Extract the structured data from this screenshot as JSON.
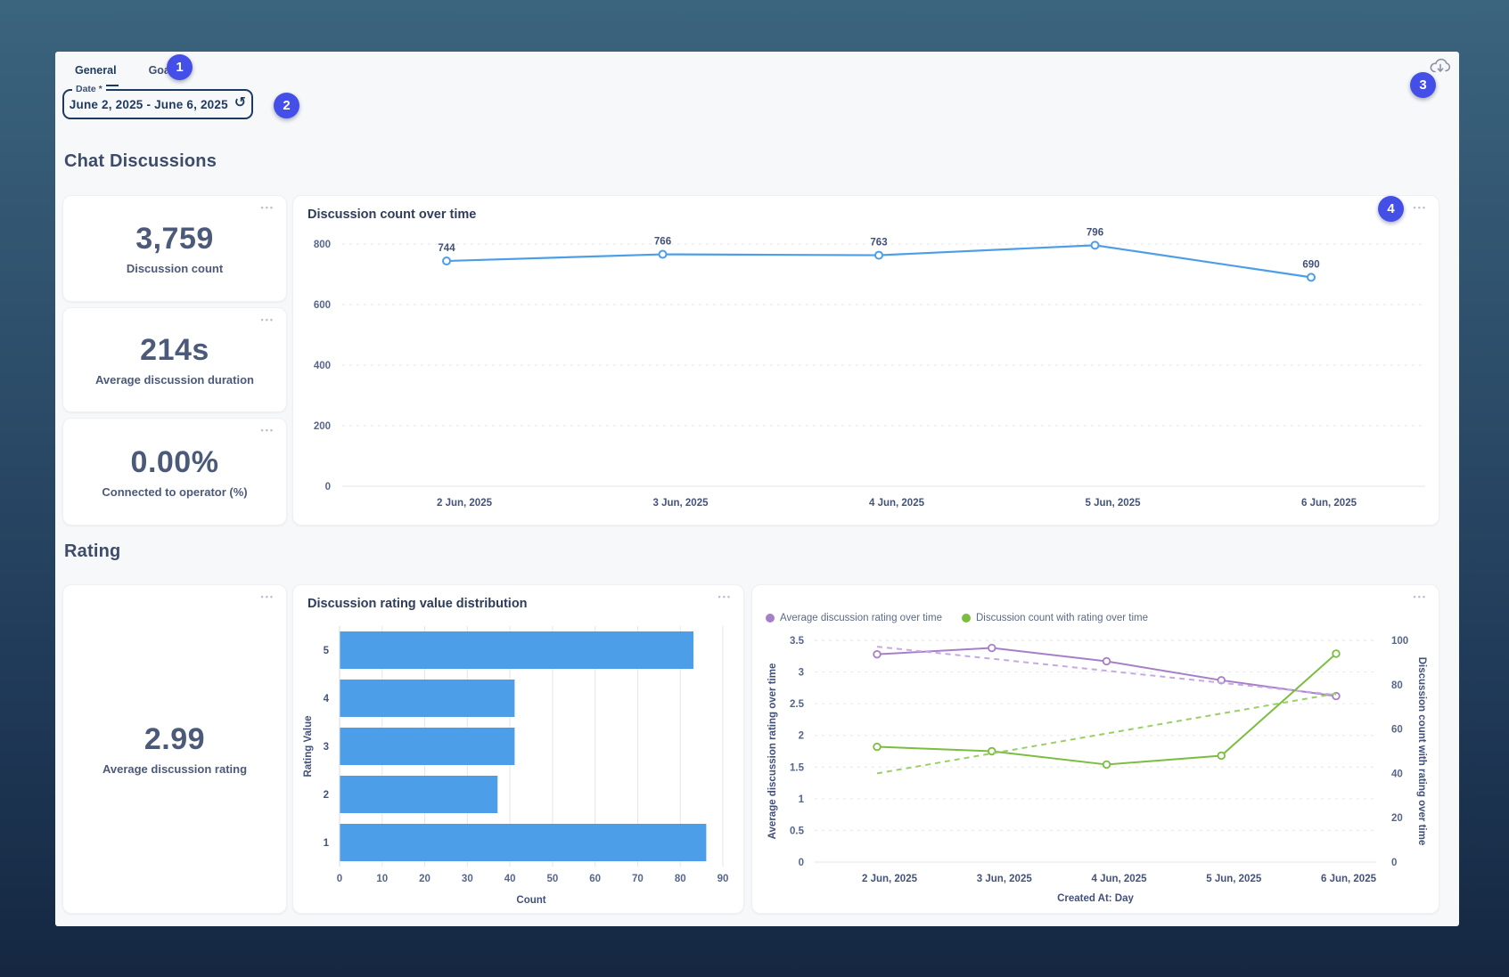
{
  "theme": {
    "accent_badge": "#434fe6",
    "navy": "#1f3a5f",
    "chart_blue": "#4d9ee8",
    "chart_purple": "#a77fc9",
    "chart_purple_trend": "#c7a9e2",
    "chart_green": "#7abd3f",
    "chart_green_trend": "#9bcf66"
  },
  "tabs": {
    "general": "General",
    "goals": "Goals"
  },
  "date_filter": {
    "label": "Date *",
    "value": "June 2, 2025 - June 6, 2025"
  },
  "icons": {
    "reset": "↺",
    "kebab": "•••",
    "cloud_download": "cloud-download"
  },
  "annotations": [
    "1",
    "2",
    "3",
    "4"
  ],
  "sections": {
    "chat": "Chat Discussions",
    "rating": "Rating"
  },
  "kpis": [
    {
      "value": "3,759",
      "label": "Discussion count"
    },
    {
      "value": "214s",
      "label": "Average discussion duration"
    },
    {
      "value": "0.00%",
      "label": "Connected to operator (%)"
    },
    {
      "value": "2.99",
      "label": "Average discussion rating"
    }
  ],
  "chart_data": [
    {
      "type": "line",
      "title": "Discussion count over time",
      "categories": [
        "2 Jun, 2025",
        "3 Jun, 2025",
        "4 Jun, 2025",
        "5 Jun, 2025",
        "6 Jun, 2025"
      ],
      "values": [
        744,
        766,
        763,
        796,
        690
      ],
      "ylim": [
        0,
        800
      ],
      "yticks": [
        0,
        200,
        400,
        600,
        800
      ],
      "grid": "horizontal-dashed",
      "markers": "open-circle",
      "data_labels": true,
      "color": "#4d9ee8"
    },
    {
      "type": "bar",
      "orientation": "horizontal",
      "title": "Discussion rating value distribution",
      "categories": [
        "5",
        "4",
        "3",
        "2",
        "1"
      ],
      "values": [
        83,
        41,
        41,
        37,
        86
      ],
      "xlabel": "Count",
      "ylabel": "Rating Value",
      "xlim": [
        0,
        90
      ],
      "xticks": [
        0,
        10,
        20,
        30,
        40,
        50,
        60,
        70,
        80,
        90
      ],
      "grid": "vertical",
      "color": "#4d9ee8"
    },
    {
      "type": "line-dual",
      "categories": [
        "2 Jun, 2025",
        "3 Jun, 2025",
        "4 Jun, 2025",
        "5 Jun, 2025",
        "6 Jun, 2025"
      ],
      "xlabel": "Created At: Day",
      "legend": [
        {
          "name": "Average discussion rating over time",
          "color": "#a77fc9"
        },
        {
          "name": "Discussion count with rating over time",
          "color": "#7abd3f"
        }
      ],
      "left": {
        "label": "Average discussion rating over time",
        "lim": [
          0,
          3.5
        ],
        "ticks": [
          0,
          0.5,
          1,
          1.5,
          2,
          2.5,
          3,
          3.5
        ]
      },
      "right": {
        "label": "Discussion count with rating over time",
        "lim": [
          0,
          100
        ],
        "ticks": [
          0,
          20,
          40,
          60,
          80,
          100
        ]
      },
      "series": [
        {
          "name": "Average discussion rating over time",
          "axis": "left",
          "style": "solid",
          "color": "#a77fc9",
          "markers": "open-circle",
          "values": [
            3.28,
            3.38,
            3.17,
            2.87,
            2.62
          ]
        },
        {
          "name": "Average discussion rating trend",
          "axis": "left",
          "style": "dashed",
          "color": "#c7a9e2",
          "markers": "none",
          "values": [
            3.4,
            3.21,
            3.02,
            2.83,
            2.64
          ]
        },
        {
          "name": "Discussion count with rating over time",
          "axis": "right",
          "style": "solid",
          "color": "#7abd3f",
          "markers": "open-circle",
          "values": [
            52,
            50,
            44,
            48,
            94
          ]
        },
        {
          "name": "Discussion count with rating trend",
          "axis": "right",
          "style": "dashed",
          "color": "#9bcf66",
          "markers": "none",
          "values": [
            40,
            49,
            58,
            67,
            76
          ]
        }
      ]
    }
  ]
}
